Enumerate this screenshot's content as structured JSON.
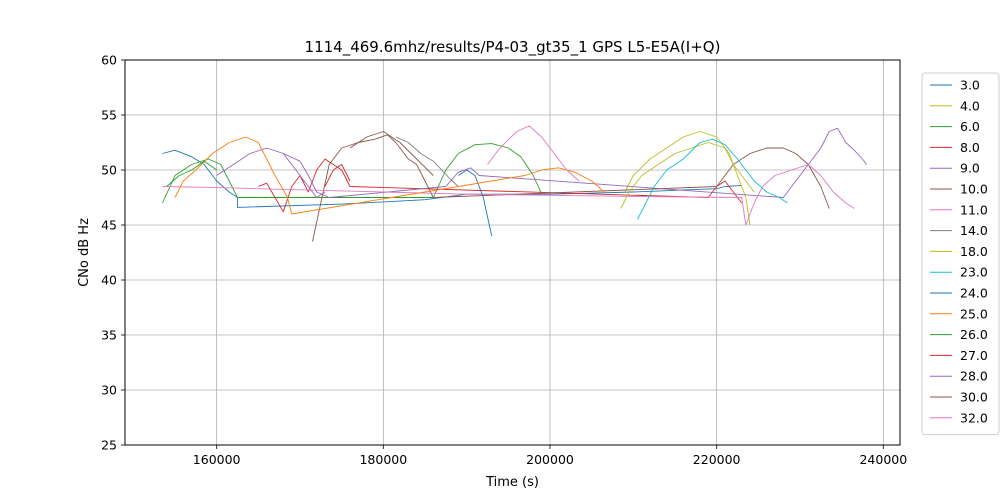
{
  "chart_data": {
    "type": "line",
    "title": "1114_469.6mhz/results/P4-03_gt35_1 GPS L5-E5A(I+Q)",
    "xlabel": "Time (s)",
    "ylabel": "CNo dB Hz",
    "xlim": [
      149000,
      242000
    ],
    "ylim": [
      25,
      60
    ],
    "xticks": [
      160000,
      180000,
      200000,
      220000,
      240000
    ],
    "xtick_labels": [
      "160000",
      "180000",
      "200000",
      "220000",
      "240000"
    ],
    "yticks": [
      25,
      30,
      35,
      40,
      45,
      50,
      55,
      60
    ],
    "ytick_labels": [
      "25",
      "30",
      "35",
      "40",
      "45",
      "50",
      "55",
      "60"
    ],
    "grid": true,
    "legend_position": "right",
    "series": [
      {
        "name": "3.0",
        "color": "#1f77b4",
        "points": [
          [
            153500,
            51.5
          ],
          [
            155000,
            51.8
          ],
          [
            157000,
            51.2
          ],
          [
            158500,
            50.5
          ],
          [
            160000,
            49.0
          ],
          [
            161500,
            48.0
          ],
          [
            162500,
            47.5
          ],
          [
            162500,
            46.6
          ],
          [
            175000,
            46.9
          ],
          [
            185000,
            47.3
          ],
          [
            190000,
            47.8
          ],
          [
            200000,
            47.8
          ],
          [
            210000,
            48.0
          ],
          [
            220000,
            48.3
          ],
          [
            221000,
            48.5
          ],
          [
            223000,
            48.6
          ]
        ]
      },
      {
        "name": "4.0",
        "color": "#bcbd22",
        "points": [
          [
            209000,
            48.0
          ],
          [
            210000,
            49.5
          ],
          [
            212000,
            51.0
          ],
          [
            214000,
            52.0
          ],
          [
            216000,
            53.0
          ],
          [
            218000,
            53.5
          ],
          [
            220000,
            53.0
          ],
          [
            221500,
            51.5
          ],
          [
            222500,
            49.5
          ],
          [
            223500,
            47.5
          ],
          [
            224000,
            45.0
          ]
        ]
      },
      {
        "name": "6.0",
        "color": "#2ca02c",
        "points": [
          [
            153500,
            47.0
          ],
          [
            155000,
            49.5
          ],
          [
            157000,
            50.5
          ],
          [
            159000,
            51.0
          ],
          [
            160500,
            50.5
          ],
          [
            161500,
            49.0
          ],
          [
            162500,
            47.5
          ],
          [
            186000,
            47.5
          ],
          [
            187500,
            50.0
          ],
          [
            189000,
            51.5
          ],
          [
            191000,
            52.3
          ],
          [
            193000,
            52.4
          ],
          [
            195000,
            52.0
          ],
          [
            196500,
            51.2
          ],
          [
            198000,
            49.5
          ],
          [
            199000,
            47.8
          ]
        ]
      },
      {
        "name": "8.0",
        "color": "#d62728",
        "points": [
          [
            165000,
            48.5
          ],
          [
            166000,
            48.8
          ],
          [
            167000,
            47.5
          ],
          [
            168000,
            46.2
          ],
          [
            169000,
            48.5
          ],
          [
            170000,
            49.5
          ],
          [
            171000,
            48.0
          ],
          [
            172000,
            50.0
          ],
          [
            173000,
            51.0
          ],
          [
            174000,
            50.5
          ],
          [
            175000,
            50.0
          ],
          [
            176000,
            48.5
          ],
          [
            219000,
            47.5
          ],
          [
            220000,
            48.5
          ],
          [
            221000,
            49.0
          ],
          [
            222000,
            48.0
          ],
          [
            223000,
            47.0
          ]
        ]
      },
      {
        "name": "9.0",
        "color": "#9467bd",
        "points": [
          [
            160000,
            49.5
          ],
          [
            162000,
            50.5
          ],
          [
            164000,
            51.5
          ],
          [
            166000,
            52.0
          ],
          [
            168000,
            51.5
          ],
          [
            170000,
            50.8
          ],
          [
            171000,
            49.5
          ],
          [
            172000,
            48.0
          ],
          [
            173500,
            47.5
          ],
          [
            187500,
            48.5
          ],
          [
            189000,
            49.8
          ],
          [
            190500,
            50.2
          ],
          [
            191500,
            49.5
          ],
          [
            228000,
            47.5
          ],
          [
            229500,
            49.0
          ],
          [
            231000,
            50.5
          ],
          [
            232500,
            52.0
          ],
          [
            233500,
            53.5
          ],
          [
            234500,
            53.8
          ],
          [
            235500,
            52.5
          ],
          [
            236500,
            51.8
          ],
          [
            237500,
            51.0
          ],
          [
            238000,
            50.5
          ]
        ]
      },
      {
        "name": "10.0",
        "color": "#8c564b",
        "points": [
          [
            171500,
            43.5
          ],
          [
            172500,
            47.0
          ],
          [
            173500,
            50.5
          ],
          [
            175000,
            52.0
          ],
          [
            177000,
            52.5
          ],
          [
            179000,
            52.8
          ],
          [
            180500,
            53.2
          ],
          [
            181500,
            52.5
          ],
          [
            183000,
            51.0
          ],
          [
            184000,
            50.5
          ],
          [
            185000,
            49.0
          ],
          [
            186000,
            47.5
          ],
          [
            220000,
            48.5
          ],
          [
            222000,
            50.5
          ],
          [
            224000,
            51.5
          ],
          [
            226000,
            52.0
          ],
          [
            228000,
            52.0
          ],
          [
            229500,
            51.5
          ],
          [
            231000,
            50.5
          ],
          [
            232500,
            48.5
          ],
          [
            233500,
            46.5
          ]
        ]
      },
      {
        "name": "11.0",
        "color": "#e377c2",
        "points": [
          [
            153500,
            48.5
          ],
          [
            160000,
            48.4
          ],
          [
            170000,
            48.2
          ],
          [
            180000,
            48.0
          ],
          [
            190000,
            47.8
          ],
          [
            200000,
            47.7
          ],
          [
            210000,
            47.6
          ],
          [
            223000,
            47.5
          ],
          [
            223500,
            45.0
          ],
          [
            224500,
            47.0
          ],
          [
            225500,
            48.5
          ],
          [
            227000,
            49.5
          ],
          [
            229000,
            50.0
          ],
          [
            231000,
            50.5
          ],
          [
            232500,
            49.5
          ],
          [
            234000,
            48.0
          ],
          [
            235500,
            47.0
          ],
          [
            236500,
            46.5
          ]
        ]
      },
      {
        "name": "14.0",
        "color": "#7f7f7f",
        "points": [
          [
            181500,
            53.0
          ],
          [
            183000,
            52.5
          ],
          [
            184500,
            51.5
          ],
          [
            186000,
            50.8
          ],
          [
            187000,
            50.0
          ],
          [
            188000,
            49.2
          ],
          [
            189000,
            48.5
          ]
        ]
      },
      {
        "name": "18.0",
        "color": "#bcbd22",
        "points": [
          [
            208500,
            46.5
          ],
          [
            209500,
            48.0
          ],
          [
            211000,
            49.5
          ],
          [
            213000,
            50.5
          ],
          [
            215000,
            51.5
          ],
          [
            217000,
            52.0
          ],
          [
            219000,
            52.5
          ],
          [
            221000,
            52.0
          ],
          [
            222000,
            50.5
          ],
          [
            223500,
            49.0
          ],
          [
            224500,
            48.0
          ]
        ]
      },
      {
        "name": "23.0",
        "color": "#17becf",
        "points": [
          [
            210500,
            45.5
          ],
          [
            211500,
            47.0
          ],
          [
            212500,
            48.5
          ],
          [
            214000,
            50.0
          ],
          [
            216000,
            51.0
          ],
          [
            218000,
            52.5
          ],
          [
            219500,
            52.8
          ],
          [
            221000,
            52.3
          ],
          [
            222500,
            51.0
          ],
          [
            224500,
            49.0
          ],
          [
            226000,
            48.0
          ],
          [
            227500,
            47.5
          ],
          [
            228500,
            47.0
          ]
        ]
      },
      {
        "name": "24.0",
        "color": "#1f77b4",
        "points": [
          [
            189000,
            49.5
          ],
          [
            190000,
            50.0
          ],
          [
            191000,
            49.5
          ],
          [
            192000,
            47.5
          ],
          [
            193000,
            44.0
          ]
        ]
      },
      {
        "name": "25.0",
        "color": "#ff7f0e",
        "points": [
          [
            155000,
            47.5
          ],
          [
            156000,
            49.0
          ],
          [
            157500,
            50.0
          ],
          [
            159500,
            51.5
          ],
          [
            161500,
            52.5
          ],
          [
            163500,
            53.0
          ],
          [
            165000,
            52.5
          ],
          [
            166000,
            51.0
          ],
          [
            167000,
            49.5
          ],
          [
            168500,
            47.5
          ],
          [
            169000,
            46.0
          ],
          [
            197000,
            49.5
          ],
          [
            199000,
            50.0
          ],
          [
            201000,
            50.2
          ],
          [
            203000,
            49.8
          ],
          [
            205000,
            49.0
          ],
          [
            206500,
            48.0
          ]
        ]
      },
      {
        "name": "26.0",
        "color": "#2ca02c",
        "points": [
          [
            154000,
            48.5
          ],
          [
            155500,
            49.5
          ],
          [
            157000,
            50.0
          ],
          [
            158500,
            50.8
          ],
          [
            160000,
            50.0
          ]
        ]
      },
      {
        "name": "27.0",
        "color": "#d62728",
        "points": [
          [
            173000,
            48.5
          ],
          [
            174000,
            50.0
          ],
          [
            175000,
            50.5
          ],
          [
            176000,
            49.0
          ]
        ]
      },
      {
        "name": "28.0",
        "color": "#9467bd",
        "points": [
          [
            168000,
            51.5
          ],
          [
            169000,
            50.5
          ],
          [
            170000,
            49.5
          ],
          [
            171000,
            48.5
          ],
          [
            172000,
            47.5
          ],
          [
            173000,
            48.0
          ]
        ]
      },
      {
        "name": "30.0",
        "color": "#8c564b",
        "points": [
          [
            176000,
            52.0
          ],
          [
            178000,
            53.0
          ],
          [
            180000,
            53.5
          ],
          [
            182000,
            52.5
          ],
          [
            184000,
            51.0
          ],
          [
            186000,
            49.5
          ]
        ]
      },
      {
        "name": "32.0",
        "color": "#e377c2",
        "points": [
          [
            192500,
            50.5
          ],
          [
            194000,
            52.0
          ],
          [
            196000,
            53.5
          ],
          [
            197500,
            54.0
          ],
          [
            199000,
            53.0
          ],
          [
            200500,
            51.5
          ],
          [
            202000,
            50.0
          ],
          [
            203500,
            49.0
          ]
        ]
      }
    ]
  }
}
